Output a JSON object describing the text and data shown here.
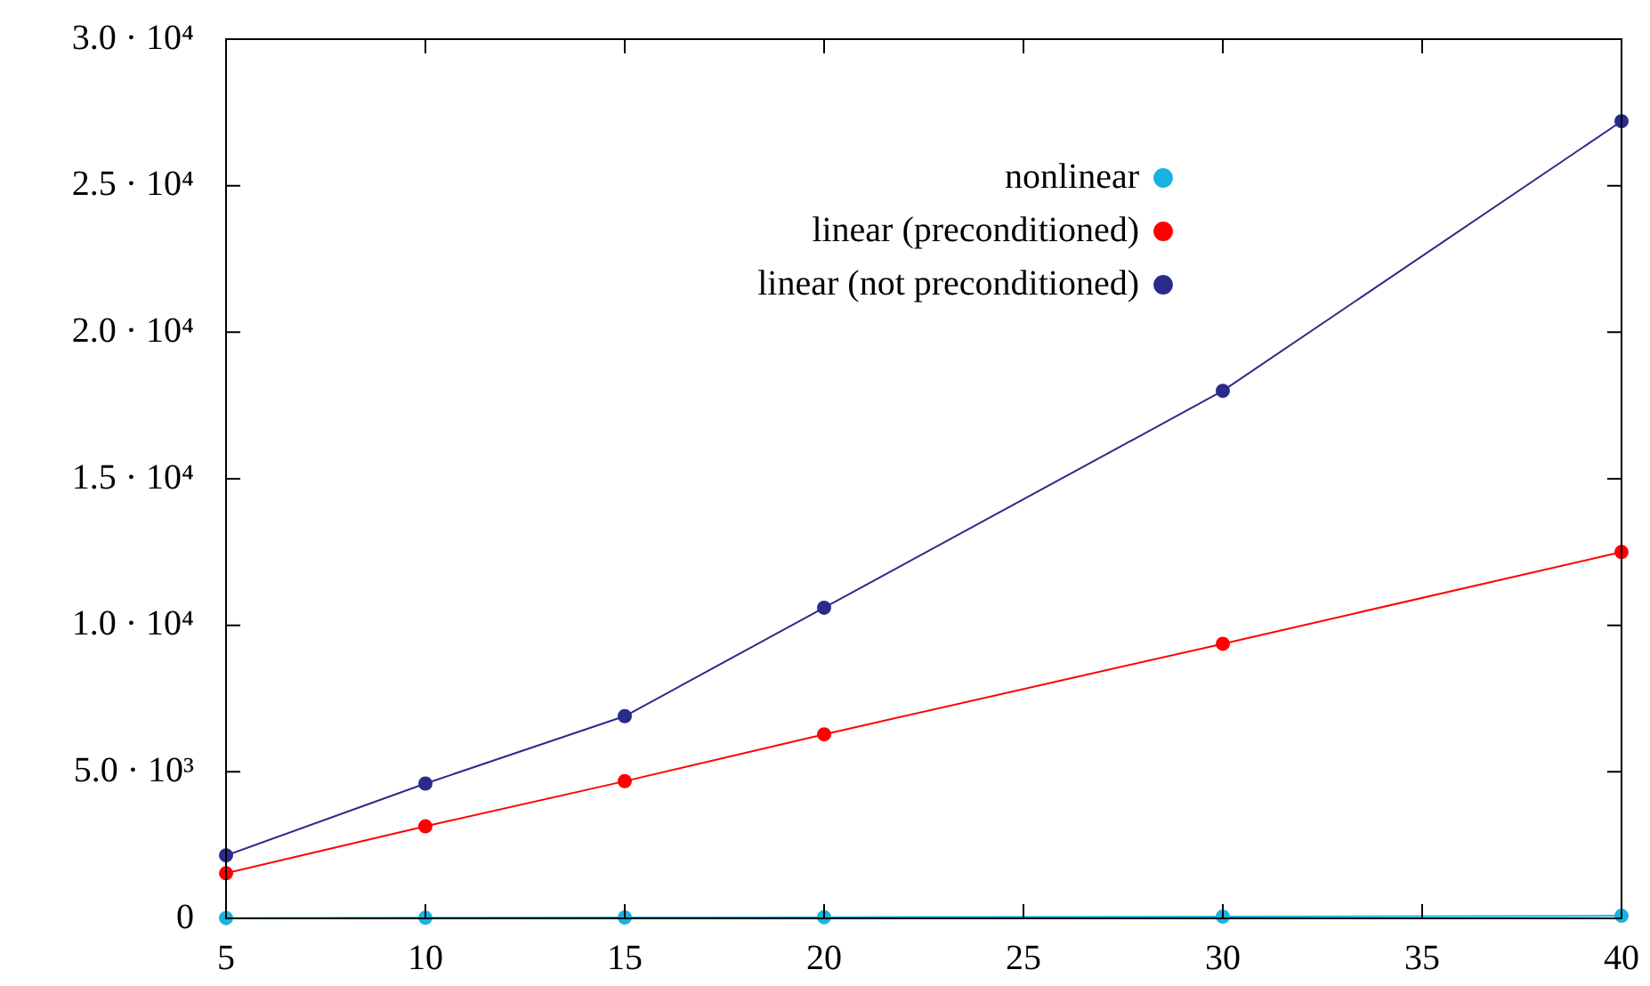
{
  "chart_data": {
    "type": "line",
    "x": [
      5,
      10,
      15,
      20,
      30,
      40
    ],
    "series": [
      {
        "name": "nonlinear",
        "color": "#1ab2e0",
        "values": [
          10,
          20,
          30,
          40,
          60,
          90
        ]
      },
      {
        "name": "linear (preconditioned)",
        "color": "#ff0000",
        "values": [
          1540,
          3140,
          4680,
          6280,
          9370,
          12500
        ]
      },
      {
        "name": "linear (not preconditioned)",
        "color": "#2b2b8c",
        "values": [
          2150,
          4600,
          6900,
          10600,
          18000,
          27200
        ]
      }
    ],
    "xlim": [
      5,
      40
    ],
    "xticks": [
      5,
      10,
      15,
      20,
      25,
      30,
      35,
      40
    ],
    "ylim": [
      0,
      30000
    ],
    "yticks": [
      0,
      {
        "value": 5000,
        "label": "5.0 · 10³"
      },
      {
        "value": 10000,
        "label": "1.0 · 10⁴"
      },
      {
        "value": 15000,
        "label": "1.5 · 10⁴"
      },
      {
        "value": 20000,
        "label": "2.0 · 10⁴"
      },
      {
        "value": 25000,
        "label": "2.5 · 10⁴"
      },
      {
        "value": 30000,
        "label": "3.0 · 10⁴"
      }
    ],
    "legend": "top right",
    "marker": "circle",
    "line_style": "solid",
    "grid": false
  }
}
